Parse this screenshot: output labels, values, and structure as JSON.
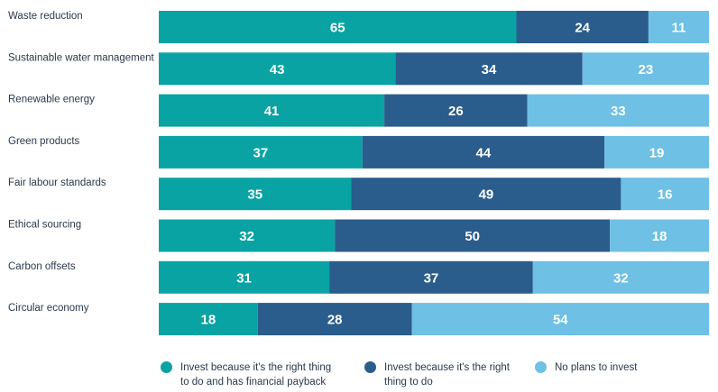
{
  "chart_data": {
    "type": "bar",
    "orientation": "horizontal",
    "stacked": true,
    "percent_stacked": true,
    "categories": [
      "Waste reduction",
      "Sustainable water management",
      "Renewable energy",
      "Green products",
      "Fair labour standards",
      "Ethical sourcing",
      "Carbon offsets",
      "Circular economy"
    ],
    "series": [
      {
        "name": "Invest because it's the right thing to do and has financial payback",
        "color": "#0aa3a3",
        "values": [
          65,
          43,
          41,
          37,
          35,
          32,
          31,
          18
        ]
      },
      {
        "name": "Invest because it's the right thing to do",
        "color": "#2a5c8c",
        "values": [
          24,
          34,
          26,
          44,
          49,
          50,
          37,
          28
        ]
      },
      {
        "name": "No plans to invest",
        "color": "#6ec0e4",
        "values": [
          11,
          23,
          33,
          19,
          16,
          18,
          32,
          54
        ]
      }
    ],
    "title": "",
    "xlabel": "",
    "ylabel": "",
    "xlim": [
      0,
      100
    ],
    "grid": false,
    "legend_position": "bottom"
  }
}
